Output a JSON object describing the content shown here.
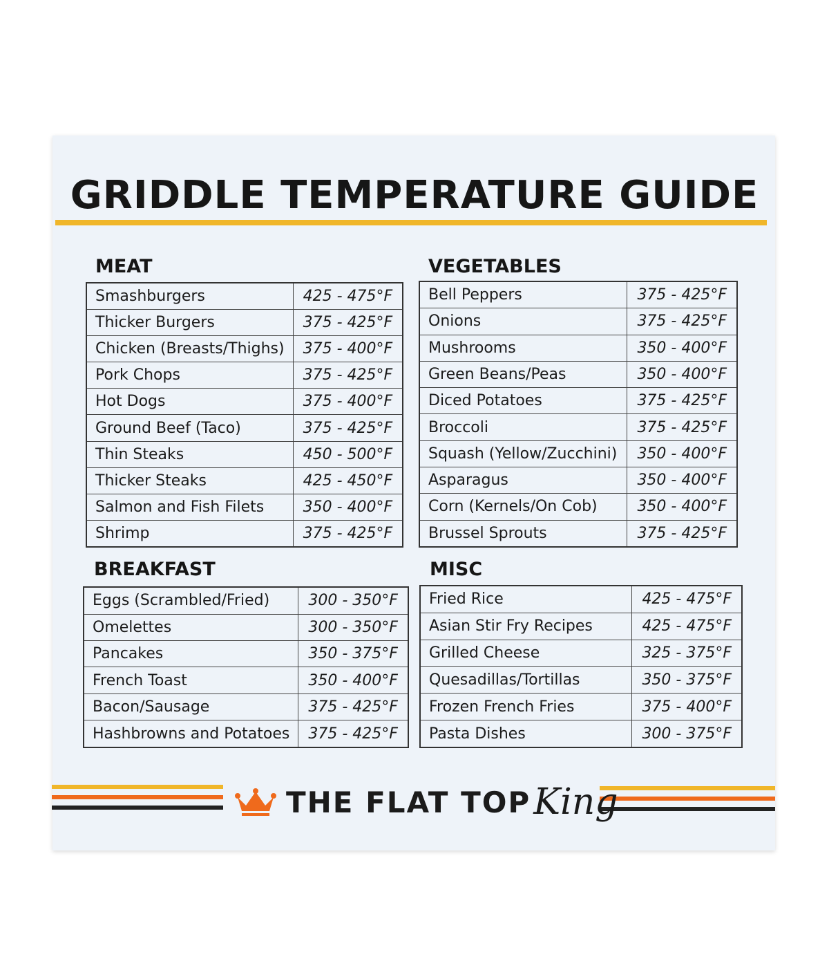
{
  "title": "GRIDDLE TEMPERATURE GUIDE",
  "colors": {
    "accent_yellow": "#f0b62a",
    "accent_orange": "#ef6a1c",
    "dark": "#222222"
  },
  "sections": {
    "meat": {
      "heading": "MEAT",
      "rows": [
        [
          "Smashburgers",
          "425 - 475°F"
        ],
        [
          "Thicker Burgers",
          "375 - 425°F"
        ],
        [
          "Chicken (Breasts/Thighs)",
          "375 - 400°F"
        ],
        [
          "Pork Chops",
          "375 - 425°F"
        ],
        [
          "Hot Dogs",
          "375 - 400°F"
        ],
        [
          "Ground Beef (Taco)",
          "375 - 425°F"
        ],
        [
          "Thin Steaks",
          "450 - 500°F"
        ],
        [
          "Thicker Steaks",
          "425 - 450°F"
        ],
        [
          "Salmon and Fish Filets",
          "350 - 400°F"
        ],
        [
          "Shrimp",
          "375 - 425°F"
        ]
      ]
    },
    "vegetables": {
      "heading": "VEGETABLES",
      "rows": [
        [
          "Bell Peppers",
          "375 - 425°F"
        ],
        [
          "Onions",
          "375 - 425°F"
        ],
        [
          "Mushrooms",
          "350 - 400°F"
        ],
        [
          "Green Beans/Peas",
          "350 - 400°F"
        ],
        [
          "Diced Potatoes",
          "375 - 425°F"
        ],
        [
          "Broccoli",
          "375 - 425°F"
        ],
        [
          "Squash (Yellow/Zucchini)",
          "350 - 400°F"
        ],
        [
          "Asparagus",
          "350 - 400°F"
        ],
        [
          "Corn (Kernels/On Cob)",
          "350 - 400°F"
        ],
        [
          "Brussel Sprouts",
          "375 - 425°F"
        ]
      ]
    },
    "breakfast": {
      "heading": "BREAKFAST",
      "rows": [
        [
          "Eggs (Scrambled/Fried)",
          "300 - 350°F"
        ],
        [
          "Omelettes",
          "300 - 350°F"
        ],
        [
          "Pancakes",
          "350 - 375°F"
        ],
        [
          "French Toast",
          "350 - 400°F"
        ],
        [
          "Bacon/Sausage",
          "375 - 425°F"
        ],
        [
          "Hashbrowns and Potatoes",
          "375 - 425°F"
        ]
      ]
    },
    "misc": {
      "heading": "MISC",
      "rows": [
        [
          "Fried Rice",
          "425 - 475°F"
        ],
        [
          "Asian Stir Fry Recipes",
          "425 - 475°F"
        ],
        [
          "Grilled Cheese",
          "325 - 375°F"
        ],
        [
          "Quesadillas/Tortillas",
          "350 - 375°F"
        ],
        [
          "Frozen French Fries",
          "375 - 400°F"
        ],
        [
          "Pasta Dishes",
          "300 - 375°F"
        ]
      ]
    }
  },
  "logo": {
    "icon": "crown-icon",
    "text": "THE FLAT TOP",
    "script": "King"
  }
}
